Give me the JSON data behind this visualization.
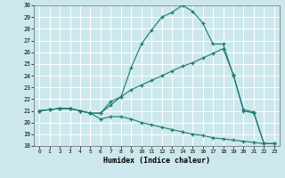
{
  "xlabel": "Humidex (Indice chaleur)",
  "ylabel": "",
  "bg_color": "#cce8ed",
  "grid_color": "#b0d4da",
  "line_color": "#1a7a6e",
  "xlim": [
    -0.5,
    23.5
  ],
  "ylim": [
    18,
    30
  ],
  "yticks": [
    18,
    19,
    20,
    21,
    22,
    23,
    24,
    25,
    26,
    27,
    28,
    29,
    30
  ],
  "xticks": [
    0,
    1,
    2,
    3,
    4,
    5,
    6,
    7,
    8,
    9,
    10,
    11,
    12,
    13,
    14,
    15,
    16,
    17,
    18,
    19,
    20,
    21,
    22,
    23
  ],
  "line1_x": [
    0,
    1,
    2,
    3,
    4,
    5,
    6,
    7,
    8,
    9,
    10,
    11,
    12,
    13,
    14,
    15,
    16,
    17,
    18,
    19,
    20,
    21,
    22,
    23
  ],
  "line1_y": [
    21.0,
    21.1,
    21.2,
    21.2,
    21.0,
    20.8,
    20.8,
    21.8,
    22.2,
    24.7,
    26.7,
    27.9,
    29.0,
    29.4,
    30.0,
    29.5,
    28.5,
    26.7,
    26.7,
    24.0,
    21.0,
    20.8,
    18.2,
    18.2
  ],
  "line2_x": [
    0,
    1,
    2,
    3,
    4,
    5,
    6,
    7,
    8,
    9,
    10,
    11,
    12,
    13,
    14,
    15,
    16,
    17,
    18,
    19,
    20,
    21,
    22,
    23
  ],
  "line2_y": [
    21.0,
    21.1,
    21.2,
    21.2,
    21.0,
    20.8,
    20.8,
    21.5,
    22.2,
    22.8,
    23.2,
    23.6,
    24.0,
    24.4,
    24.8,
    25.1,
    25.5,
    25.9,
    26.3,
    24.1,
    21.1,
    20.9,
    18.2,
    18.2
  ],
  "line3_x": [
    0,
    1,
    2,
    3,
    4,
    5,
    6,
    7,
    8,
    9,
    10,
    11,
    12,
    13,
    14,
    15,
    16,
    17,
    18,
    19,
    20,
    21,
    22,
    23
  ],
  "line3_y": [
    21.0,
    21.1,
    21.2,
    21.2,
    21.0,
    20.8,
    20.3,
    20.5,
    20.5,
    20.3,
    20.0,
    19.8,
    19.6,
    19.4,
    19.2,
    19.0,
    18.9,
    18.7,
    18.6,
    18.5,
    18.4,
    18.3,
    18.2,
    18.2
  ]
}
